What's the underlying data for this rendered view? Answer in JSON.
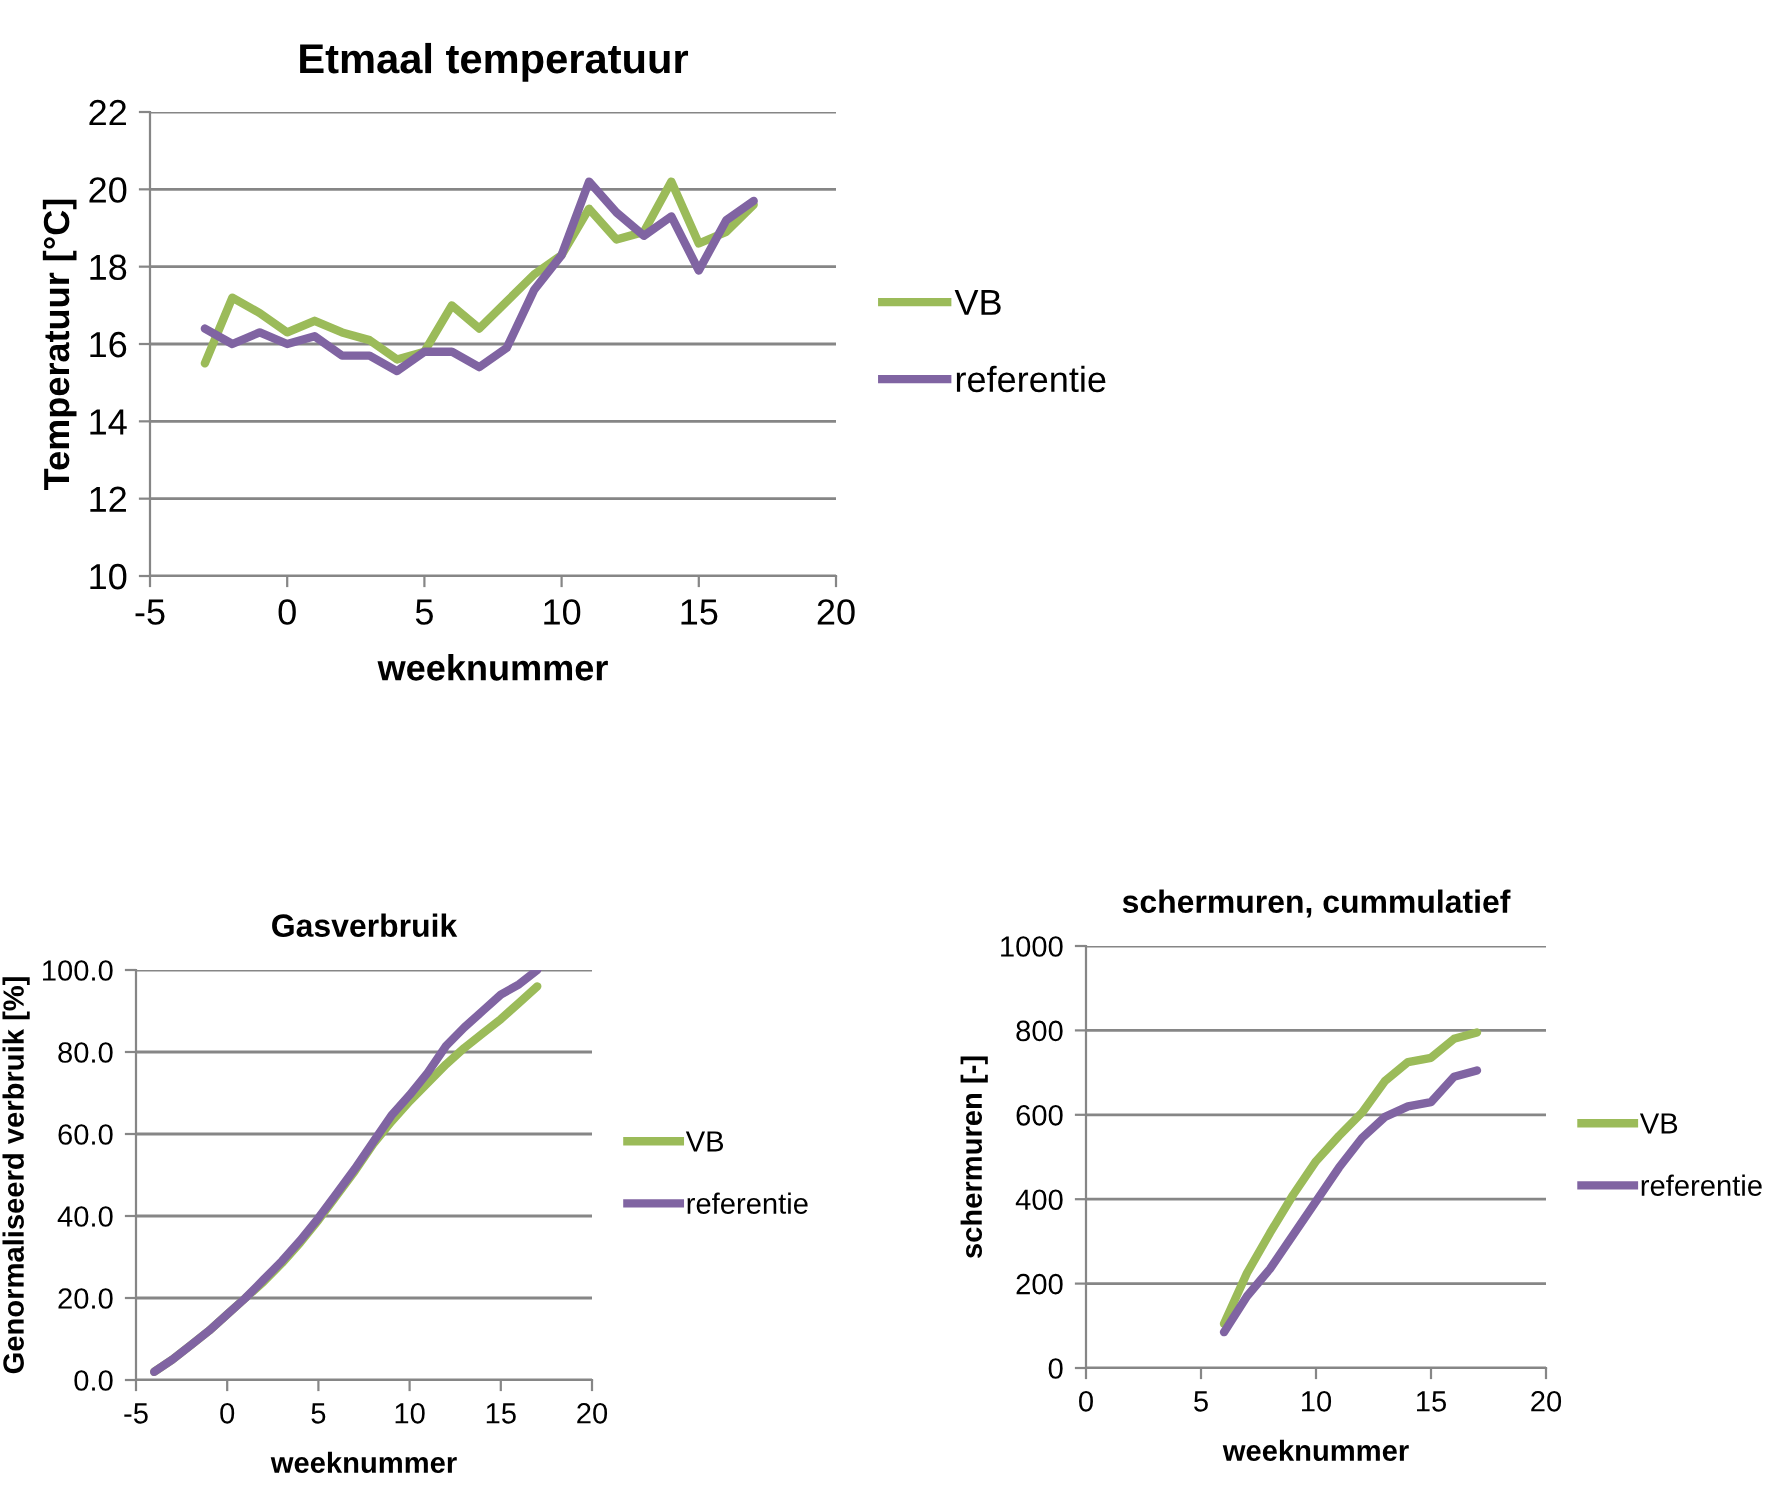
{
  "chart_data": [
    {
      "type": "line",
      "title": "Etmaal temperatuur",
      "xlabel": "weeknummer",
      "ylabel": "Temperatuur [°C]",
      "xlim": [
        -5,
        20
      ],
      "xticks": [
        -5,
        0,
        5,
        10,
        15,
        20
      ],
      "ylim": [
        10,
        22
      ],
      "yticks": [
        10,
        12,
        14,
        16,
        18,
        20,
        22
      ],
      "grid": "y",
      "legend": "right",
      "x": [
        -3,
        -2,
        -1,
        0,
        1,
        2,
        3,
        4,
        5,
        6,
        7,
        8,
        9,
        10,
        11,
        12,
        13,
        14,
        15,
        16,
        17
      ],
      "series": [
        {
          "name": "VB",
          "color": "#9bbb59",
          "values": [
            15.5,
            17.2,
            16.8,
            16.3,
            16.6,
            16.3,
            16.1,
            15.6,
            15.8,
            17.0,
            16.4,
            17.1,
            17.8,
            18.3,
            19.5,
            18.7,
            18.9,
            20.2,
            18.6,
            18.9,
            19.6
          ]
        },
        {
          "name": "referentie",
          "color": "#8064a2",
          "values": [
            16.4,
            16.0,
            16.3,
            16.0,
            16.2,
            15.7,
            15.7,
            15.3,
            15.8,
            15.8,
            15.4,
            15.9,
            17.4,
            18.3,
            20.2,
            19.4,
            18.8,
            19.3,
            17.9,
            19.2,
            19.7
          ]
        }
      ]
    },
    {
      "type": "line",
      "title": "Gasverbruik",
      "xlabel": "weeknummer",
      "ylabel": "Genormaliseerd verbruik [%]",
      "xlim": [
        -5,
        20
      ],
      "xticks": [
        -5,
        0,
        5,
        10,
        15,
        20
      ],
      "ylim": [
        0,
        100
      ],
      "yticks": [
        {
          "value": 0,
          "label": "0.0"
        },
        {
          "value": 20,
          "label": "20.0"
        },
        {
          "value": 40,
          "label": "40.0"
        },
        {
          "value": 60,
          "label": "60.0"
        },
        {
          "value": 80,
          "label": "80.0"
        },
        {
          "value": 100,
          "label": "100.0"
        }
      ],
      "grid": "y",
      "legend": "right",
      "x": [
        -4,
        -3,
        -2,
        -1,
        0,
        1,
        2,
        3,
        4,
        5,
        6,
        7,
        8,
        9,
        10,
        11,
        12,
        13,
        14,
        15,
        16,
        17
      ],
      "series": [
        {
          "name": "VB",
          "color": "#9bbb59",
          "values": [
            2,
            5,
            8.5,
            12,
            16,
            20,
            24,
            28.5,
            33.5,
            39,
            45,
            51,
            57.5,
            63,
            68,
            72.5,
            77,
            81,
            84.5,
            88,
            92,
            96
          ]
        },
        {
          "name": "referentie",
          "color": "#8064a2",
          "values": [
            2,
            5,
            8.5,
            12,
            16,
            20,
            24.5,
            29,
            34,
            39.5,
            45.5,
            51.5,
            58,
            64.5,
            69.5,
            75,
            81.5,
            86,
            90,
            94,
            96.5,
            100
          ]
        }
      ]
    },
    {
      "type": "line",
      "title": "schermuren, cummulatief",
      "xlabel": "weeknummer",
      "ylabel": "schermuren [-]",
      "xlim": [
        0,
        20
      ],
      "xticks": [
        0,
        5,
        10,
        15,
        20
      ],
      "ylim": [
        0,
        1000
      ],
      "yticks": [
        0,
        200,
        400,
        600,
        800,
        1000
      ],
      "grid": "y",
      "legend": "right",
      "x": [
        6,
        7,
        8,
        9,
        10,
        11,
        12,
        13,
        14,
        15,
        16,
        17
      ],
      "series": [
        {
          "name": "VB",
          "color": "#9bbb59",
          "values": [
            105,
            225,
            320,
            410,
            490,
            550,
            605,
            680,
            725,
            735,
            780,
            795
          ]
        },
        {
          "name": "referentie",
          "color": "#8064a2",
          "values": [
            85,
            170,
            235,
            315,
            395,
            475,
            545,
            595,
            620,
            630,
            690,
            705
          ]
        }
      ]
    }
  ]
}
